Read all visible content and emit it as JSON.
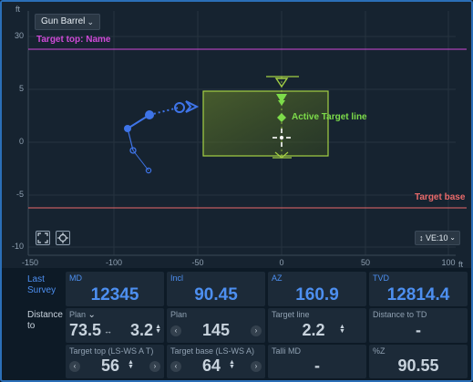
{
  "header": {
    "view_mode": "Gun Barrel",
    "unit_y": "ft",
    "unit_x": "ft",
    "ve_label": "VE:10"
  },
  "plot": {
    "x_ticks": [
      "-150",
      "-100",
      "-50",
      "0",
      "50",
      "100"
    ],
    "y_ticks": [
      "30",
      "5",
      "0",
      "-5",
      "-10"
    ],
    "target_top_label": "Target top: Name",
    "target_base_label": "Target base",
    "active_target_label": "Active Target line",
    "colors": {
      "target_top": "#d04ad8",
      "target_base": "#ea6a6a",
      "target_box": "#a4d044",
      "active_target": "#7ddc4a",
      "trajectory": "#3e74e8"
    }
  },
  "panel": {
    "last_survey_label": "Last\nSurvey",
    "last_survey_l1": "Last",
    "last_survey_l2": "Survey",
    "distance_l1": "Distance",
    "distance_l2": "to",
    "md": {
      "label": "MD",
      "value": "12345"
    },
    "incl": {
      "label": "Incl",
      "value": "90.45"
    },
    "az": {
      "label": "AZ",
      "value": "160.9"
    },
    "tvd": {
      "label": "TVD",
      "value": "12814.4"
    },
    "plan1": {
      "label": "Plan",
      "value_a": "73.5",
      "value_b": "3.2"
    },
    "plan2": {
      "label": "Plan",
      "value": "145"
    },
    "target_line": {
      "label": "Target line",
      "value": "2.2"
    },
    "distance_to_td": {
      "label": "Distance to TD",
      "value": "-"
    },
    "target_top": {
      "label": "Target top (LS-WS A T)",
      "value": "56"
    },
    "target_base": {
      "label": "Target base (LS-WS A)",
      "value": "64"
    },
    "talli_md": {
      "label": "Talli MD",
      "value": "-"
    },
    "pct_z": {
      "label": "%Z",
      "value": "90.55"
    }
  }
}
